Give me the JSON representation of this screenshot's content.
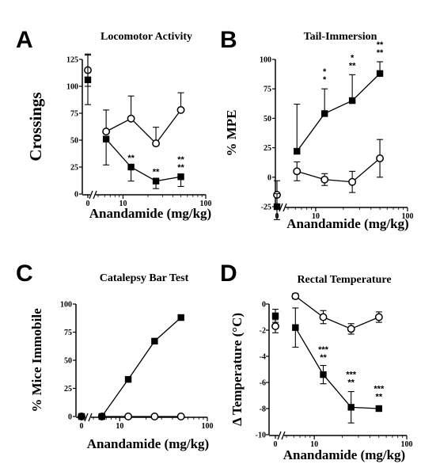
{
  "chart_data": [
    {
      "letter": "A",
      "type": "line",
      "title": "Locomotor Activity",
      "xlabel": "Anandamide (mg/kg)",
      "ylabel": "Crossings",
      "x_scale": "log",
      "xlim": [
        5,
        100
      ],
      "ylim": [
        0,
        125
      ],
      "yticks": [
        0,
        25,
        50,
        75,
        100,
        125
      ],
      "xticks": [
        {
          "v": 10,
          "label": "10"
        },
        {
          "v": 100,
          "label": "100"
        }
      ],
      "zero_tick_label": "0",
      "series": [
        {
          "marker": "open-circle",
          "control": {
            "y": 115,
            "err": 15
          },
          "x": [
            6.25,
            12.5,
            25,
            50
          ],
          "y": [
            58,
            70,
            47,
            78
          ],
          "err": [
            20,
            21,
            15,
            16
          ],
          "err_dir": "up"
        },
        {
          "marker": "filled-square",
          "control": {
            "y": 106,
            "err": 23
          },
          "x": [
            6.25,
            12.5,
            25,
            50
          ],
          "y": [
            51,
            25,
            12,
            16
          ],
          "err": [
            24,
            13,
            7,
            9
          ],
          "err_dir": "down"
        }
      ],
      "annotations": [
        {
          "x": 12.5,
          "y": 25,
          "lines": [
            "**"
          ]
        },
        {
          "x": 25,
          "y": 12,
          "lines": [
            "**"
          ]
        },
        {
          "x": 50,
          "y": 16,
          "lines": [
            "**",
            "**"
          ]
        }
      ]
    },
    {
      "letter": "B",
      "type": "line",
      "title": "Tail-Immersion",
      "xlabel": "Anandamide (mg/kg)",
      "ylabel": "% MPE",
      "x_scale": "log",
      "xlim": [
        5,
        100
      ],
      "ylim": [
        -25,
        100
      ],
      "yticks": [
        -25,
        0,
        25,
        50,
        75,
        100
      ],
      "xticks": [
        {
          "v": 10,
          "label": "10"
        },
        {
          "v": 100,
          "label": "100"
        }
      ],
      "zero_tick_label": "0",
      "series": [
        {
          "marker": "open-circle",
          "control": {
            "y": -15,
            "err": 12
          },
          "x": [
            6.25,
            12.5,
            25,
            50
          ],
          "y": [
            5,
            -2,
            -4,
            16
          ],
          "err": [
            8,
            5,
            9,
            16
          ],
          "err_dir": "both"
        },
        {
          "marker": "filled-square",
          "control": {
            "y": -25,
            "err": 11
          },
          "x": [
            6.25,
            12.5,
            25,
            50
          ],
          "y": [
            22,
            54,
            65,
            88
          ],
          "err": [
            40,
            21,
            22,
            10
          ],
          "err_dir": "up"
        }
      ],
      "annotations": [
        {
          "x": 12.5,
          "y": 75,
          "lines": [
            "*",
            "*"
          ]
        },
        {
          "x": 25,
          "y": 87,
          "lines": [
            "*",
            "**"
          ]
        },
        {
          "x": 50,
          "y": 98,
          "lines": [
            "**",
            "**"
          ]
        }
      ]
    },
    {
      "letter": "C",
      "type": "line",
      "title": "Catalepsy Bar Test",
      "xlabel": "Anandamide (mg/kg)",
      "ylabel": "% Mice Immobile",
      "x_scale": "log",
      "xlim": [
        5,
        100
      ],
      "ylim": [
        0,
        100
      ],
      "yticks": [
        0,
        25,
        50,
        75,
        100
      ],
      "xticks": [
        {
          "v": 10,
          "label": "10"
        },
        {
          "v": 100,
          "label": "100"
        }
      ],
      "zero_tick_label": "0",
      "series": [
        {
          "marker": "open-circle",
          "control": {
            "y": 0,
            "err": 0
          },
          "x": [
            6.25,
            12.5,
            25,
            50
          ],
          "y": [
            0,
            0,
            0,
            0
          ],
          "err": [
            0,
            0,
            0,
            0
          ],
          "err_dir": "both"
        },
        {
          "marker": "filled-square",
          "control": {
            "y": 0,
            "err": 0
          },
          "x": [
            6.25,
            12.5,
            25,
            50
          ],
          "y": [
            0,
            33,
            67,
            88
          ],
          "err": [
            0,
            0,
            0,
            0
          ],
          "err_dir": "both"
        }
      ],
      "annotations": []
    },
    {
      "letter": "D",
      "type": "line",
      "title": "Rectal Temperature",
      "xlabel": "Anandamide (mg/kg)",
      "ylabel": "Δ Temperature (°C)",
      "x_scale": "log",
      "xlim": [
        5,
        100
      ],
      "ylim": [
        -10,
        0
      ],
      "yticks": [
        -10,
        -8,
        -6,
        -4,
        -2,
        0
      ],
      "xticks": [
        {
          "v": 10,
          "label": "10"
        },
        {
          "v": 100,
          "label": "100"
        }
      ],
      "zero_tick_label": "0",
      "series": [
        {
          "marker": "open-circle",
          "control": {
            "y": -1.7,
            "err": 0.5
          },
          "x": [
            6.25,
            12.5,
            25,
            50
          ],
          "y": [
            0.6,
            -1.0,
            -1.9,
            -1.0
          ],
          "err": [
            0.2,
            0.5,
            0.4,
            0.4
          ],
          "err_dir": "both"
        },
        {
          "marker": "filled-square",
          "control": {
            "y": -0.9,
            "err": 0.5
          },
          "x": [
            6.25,
            12.5,
            25,
            50
          ],
          "y": [
            -1.8,
            -5.4,
            -7.9,
            -8.0
          ],
          "err": [
            1.5,
            0.7,
            1.2,
            0.2
          ],
          "err_dir": "both"
        }
      ],
      "annotations": [
        {
          "x": 12.5,
          "y": -4.8,
          "lines": [
            "***",
            "**"
          ]
        },
        {
          "x": 25,
          "y": -6.7,
          "lines": [
            "***",
            "**"
          ]
        },
        {
          "x": 50,
          "y": -7.8,
          "lines": [
            "***",
            "**"
          ]
        }
      ]
    }
  ]
}
